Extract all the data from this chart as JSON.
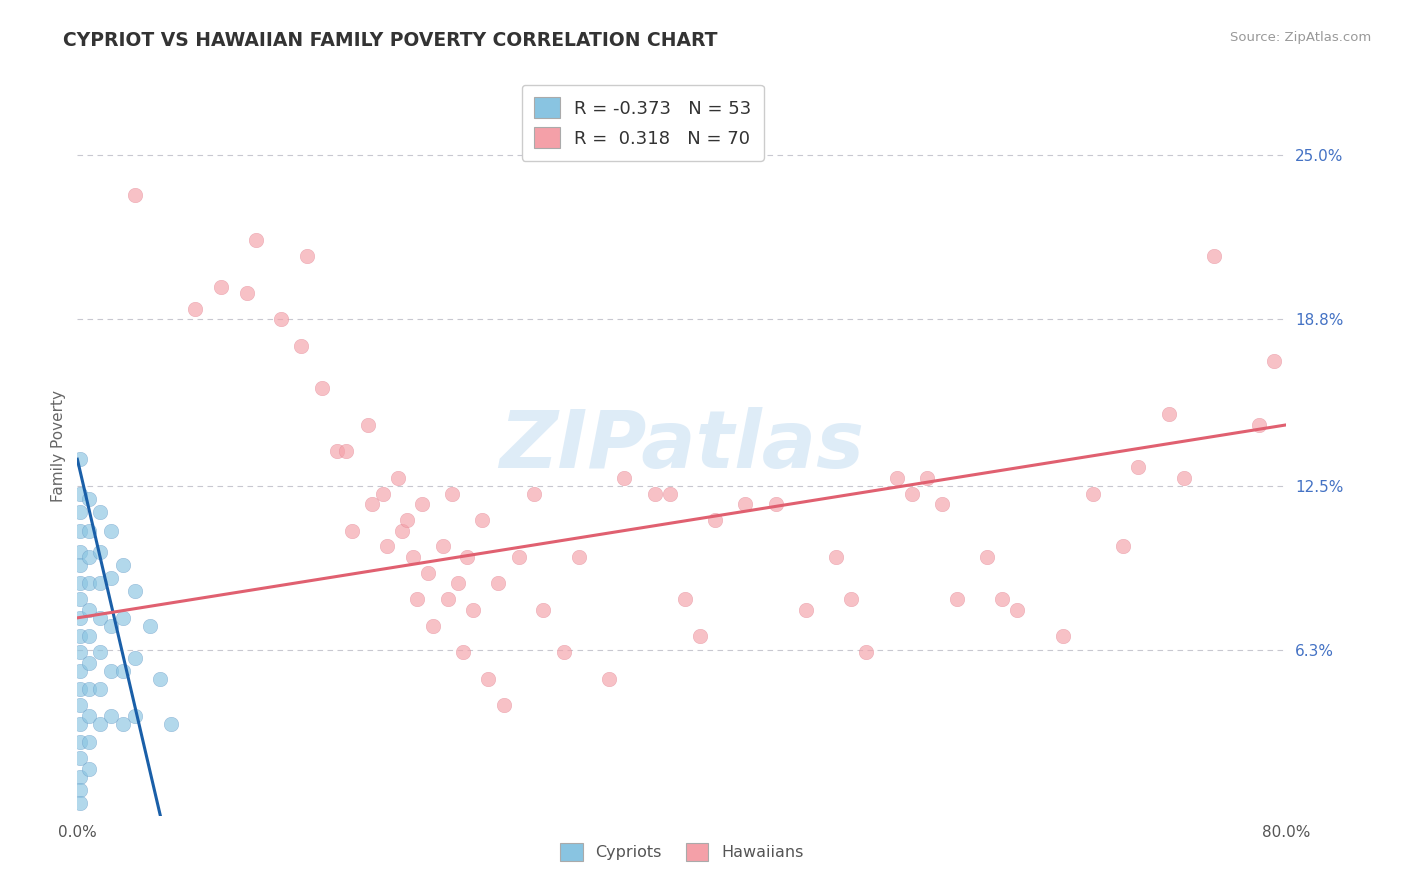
{
  "title": "CYPRIOT VS HAWAIIAN FAMILY POVERTY CORRELATION CHART",
  "source": "Source: ZipAtlas.com",
  "ylabel_label": "Family Poverty",
  "y_ticks_right": [
    0.0,
    0.063,
    0.125,
    0.188,
    0.25
  ],
  "y_tick_labels_right": [
    "",
    "6.3%",
    "12.5%",
    "18.8%",
    "25.0%"
  ],
  "xlim": [
    0.0,
    0.8
  ],
  "ylim": [
    0.0,
    0.28
  ],
  "legend_r_cypriot": "-0.373",
  "legend_n_cypriot": "53",
  "legend_r_hawaiian": "0.318",
  "legend_n_hawaiian": "70",
  "cypriot_color": "#89c4e1",
  "hawaiian_color": "#f4a0a8",
  "cypriot_line_color": "#1a5fa8",
  "hawaiian_line_color": "#e06070",
  "background_color": "#ffffff",
  "grid_color": "#c8c8d0",
  "cypriot_line": [
    [
      0.0,
      0.135
    ],
    [
      0.055,
      0.0
    ]
  ],
  "hawaiian_line": [
    [
      0.0,
      0.075
    ],
    [
      0.8,
      0.148
    ]
  ],
  "cypriot_points": [
    [
      0.002,
      0.135
    ],
    [
      0.002,
      0.122
    ],
    [
      0.002,
      0.115
    ],
    [
      0.002,
      0.108
    ],
    [
      0.002,
      0.1
    ],
    [
      0.002,
      0.095
    ],
    [
      0.002,
      0.088
    ],
    [
      0.002,
      0.082
    ],
    [
      0.002,
      0.075
    ],
    [
      0.002,
      0.068
    ],
    [
      0.002,
      0.062
    ],
    [
      0.002,
      0.055
    ],
    [
      0.002,
      0.048
    ],
    [
      0.002,
      0.042
    ],
    [
      0.002,
      0.035
    ],
    [
      0.002,
      0.028
    ],
    [
      0.002,
      0.022
    ],
    [
      0.002,
      0.015
    ],
    [
      0.002,
      0.01
    ],
    [
      0.002,
      0.005
    ],
    [
      0.008,
      0.12
    ],
    [
      0.008,
      0.108
    ],
    [
      0.008,
      0.098
    ],
    [
      0.008,
      0.088
    ],
    [
      0.008,
      0.078
    ],
    [
      0.008,
      0.068
    ],
    [
      0.008,
      0.058
    ],
    [
      0.008,
      0.048
    ],
    [
      0.008,
      0.038
    ],
    [
      0.008,
      0.028
    ],
    [
      0.008,
      0.018
    ],
    [
      0.015,
      0.115
    ],
    [
      0.015,
      0.1
    ],
    [
      0.015,
      0.088
    ],
    [
      0.015,
      0.075
    ],
    [
      0.015,
      0.062
    ],
    [
      0.015,
      0.048
    ],
    [
      0.015,
      0.035
    ],
    [
      0.022,
      0.108
    ],
    [
      0.022,
      0.09
    ],
    [
      0.022,
      0.072
    ],
    [
      0.022,
      0.055
    ],
    [
      0.022,
      0.038
    ],
    [
      0.03,
      0.095
    ],
    [
      0.03,
      0.075
    ],
    [
      0.03,
      0.055
    ],
    [
      0.03,
      0.035
    ],
    [
      0.038,
      0.085
    ],
    [
      0.038,
      0.06
    ],
    [
      0.038,
      0.038
    ],
    [
      0.048,
      0.072
    ],
    [
      0.055,
      0.052
    ],
    [
      0.062,
      0.035
    ]
  ],
  "hawaiian_points": [
    [
      0.038,
      0.235
    ],
    [
      0.078,
      0.192
    ],
    [
      0.095,
      0.2
    ],
    [
      0.112,
      0.198
    ],
    [
      0.118,
      0.218
    ],
    [
      0.135,
      0.188
    ],
    [
      0.148,
      0.178
    ],
    [
      0.152,
      0.212
    ],
    [
      0.162,
      0.162
    ],
    [
      0.172,
      0.138
    ],
    [
      0.178,
      0.138
    ],
    [
      0.182,
      0.108
    ],
    [
      0.192,
      0.148
    ],
    [
      0.195,
      0.118
    ],
    [
      0.202,
      0.122
    ],
    [
      0.205,
      0.102
    ],
    [
      0.212,
      0.128
    ],
    [
      0.215,
      0.108
    ],
    [
      0.218,
      0.112
    ],
    [
      0.222,
      0.098
    ],
    [
      0.225,
      0.082
    ],
    [
      0.228,
      0.118
    ],
    [
      0.232,
      0.092
    ],
    [
      0.235,
      0.072
    ],
    [
      0.242,
      0.102
    ],
    [
      0.245,
      0.082
    ],
    [
      0.248,
      0.122
    ],
    [
      0.252,
      0.088
    ],
    [
      0.255,
      0.062
    ],
    [
      0.258,
      0.098
    ],
    [
      0.262,
      0.078
    ],
    [
      0.268,
      0.112
    ],
    [
      0.272,
      0.052
    ],
    [
      0.278,
      0.088
    ],
    [
      0.282,
      0.042
    ],
    [
      0.292,
      0.098
    ],
    [
      0.302,
      0.122
    ],
    [
      0.308,
      0.078
    ],
    [
      0.322,
      0.062
    ],
    [
      0.332,
      0.098
    ],
    [
      0.352,
      0.052
    ],
    [
      0.362,
      0.128
    ],
    [
      0.382,
      0.122
    ],
    [
      0.392,
      0.122
    ],
    [
      0.402,
      0.082
    ],
    [
      0.412,
      0.068
    ],
    [
      0.422,
      0.112
    ],
    [
      0.442,
      0.118
    ],
    [
      0.462,
      0.118
    ],
    [
      0.482,
      0.078
    ],
    [
      0.502,
      0.098
    ],
    [
      0.512,
      0.082
    ],
    [
      0.522,
      0.062
    ],
    [
      0.542,
      0.128
    ],
    [
      0.552,
      0.122
    ],
    [
      0.562,
      0.128
    ],
    [
      0.572,
      0.118
    ],
    [
      0.582,
      0.082
    ],
    [
      0.602,
      0.098
    ],
    [
      0.612,
      0.082
    ],
    [
      0.622,
      0.078
    ],
    [
      0.652,
      0.068
    ],
    [
      0.672,
      0.122
    ],
    [
      0.692,
      0.102
    ],
    [
      0.702,
      0.132
    ],
    [
      0.722,
      0.152
    ],
    [
      0.732,
      0.128
    ],
    [
      0.752,
      0.212
    ],
    [
      0.782,
      0.148
    ],
    [
      0.792,
      0.172
    ]
  ]
}
